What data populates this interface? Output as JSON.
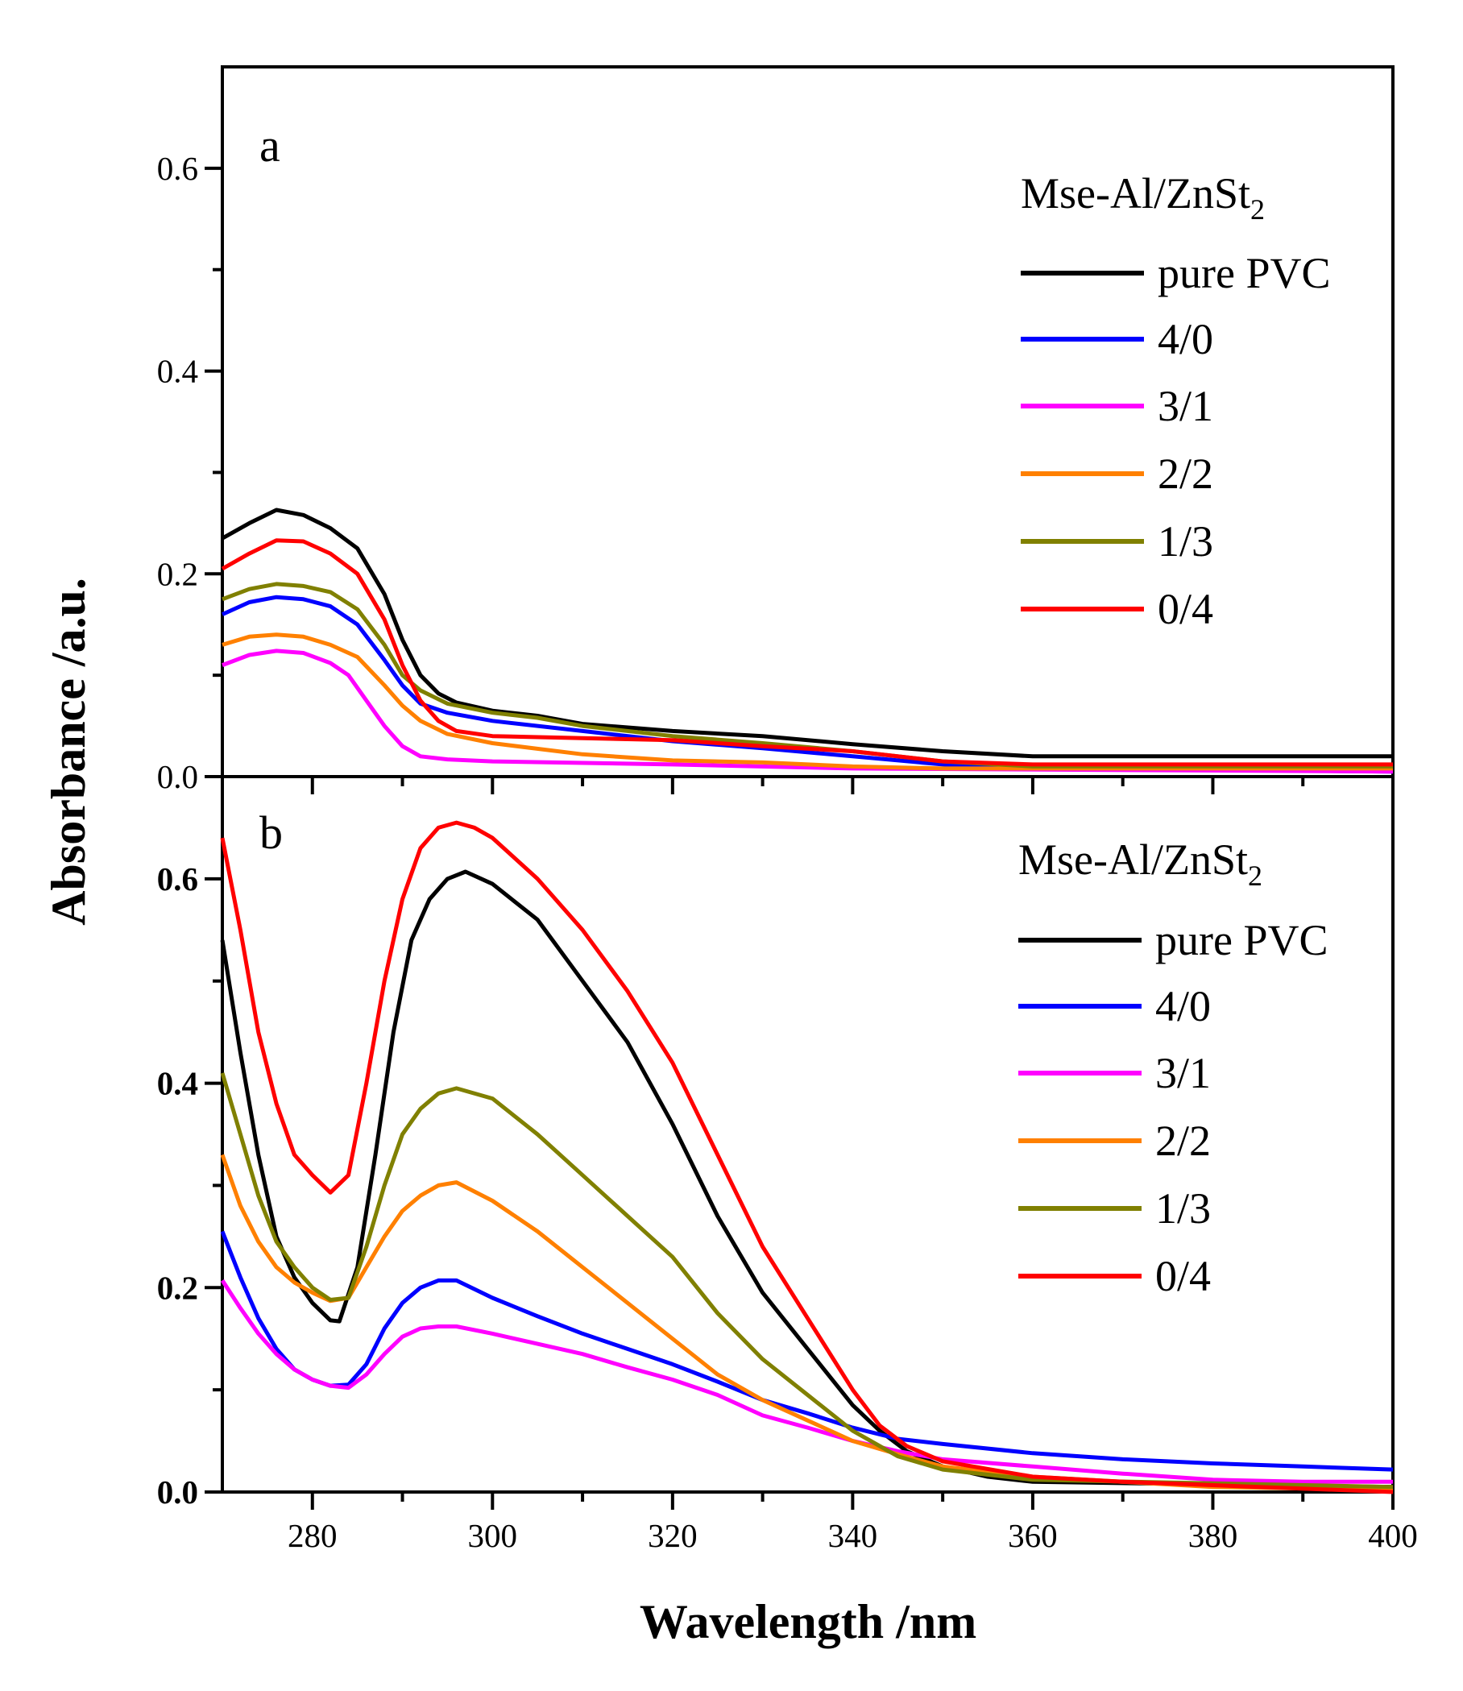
{
  "chart_data": [
    {
      "type": "line",
      "panel_label": "a",
      "xlabel": "Wavelength /nm",
      "ylabel": "Absorbance /a.u.",
      "xlim": [
        270,
        400
      ],
      "ylim": [
        0,
        0.7
      ],
      "xticks": [
        "280",
        "300",
        "320",
        "340",
        "360",
        "380",
        "400"
      ],
      "yticks": [
        "0.0",
        "0.2",
        "0.4",
        "0.6"
      ],
      "legend_title": "Mse-Al/ZnSt",
      "legend_title_sub": "2",
      "legend_position": "top-right",
      "series": [
        {
          "name": "pure PVC",
          "color": "#000000",
          "x": [
            270,
            273,
            276,
            279,
            282,
            285,
            288,
            290,
            292,
            294,
            296,
            300,
            305,
            310,
            320,
            330,
            340,
            350,
            360,
            400
          ],
          "y": [
            0.235,
            0.25,
            0.263,
            0.258,
            0.245,
            0.225,
            0.18,
            0.135,
            0.1,
            0.082,
            0.073,
            0.065,
            0.06,
            0.052,
            0.045,
            0.04,
            0.032,
            0.025,
            0.02,
            0.02
          ]
        },
        {
          "name": "4/0",
          "color": "#0000ff",
          "x": [
            270,
            273,
            276,
            279,
            282,
            285,
            288,
            290,
            292,
            295,
            300,
            310,
            320,
            330,
            340,
            350,
            360,
            400
          ],
          "y": [
            0.16,
            0.172,
            0.177,
            0.175,
            0.168,
            0.15,
            0.115,
            0.09,
            0.072,
            0.063,
            0.055,
            0.045,
            0.035,
            0.028,
            0.02,
            0.012,
            0.008,
            0.005
          ]
        },
        {
          "name": "3/1",
          "color": "#ff00ff",
          "x": [
            270,
            273,
            276,
            279,
            282,
            284,
            286,
            288,
            290,
            292,
            295,
            300,
            320,
            340,
            400
          ],
          "y": [
            0.11,
            0.12,
            0.124,
            0.122,
            0.112,
            0.1,
            0.075,
            0.05,
            0.03,
            0.02,
            0.017,
            0.015,
            0.012,
            0.008,
            0.005
          ]
        },
        {
          "name": "2/2",
          "color": "#ff8000",
          "x": [
            270,
            273,
            276,
            279,
            282,
            285,
            288,
            290,
            292,
            295,
            300,
            310,
            320,
            330,
            340,
            350,
            400
          ],
          "y": [
            0.13,
            0.138,
            0.14,
            0.138,
            0.13,
            0.118,
            0.09,
            0.07,
            0.055,
            0.042,
            0.033,
            0.022,
            0.016,
            0.014,
            0.01,
            0.008,
            0.008
          ]
        },
        {
          "name": "1/3",
          "color": "#808000",
          "x": [
            270,
            273,
            276,
            279,
            282,
            285,
            288,
            290,
            292,
            295,
            300,
            305,
            310,
            320,
            330,
            340,
            350,
            360,
            400
          ],
          "y": [
            0.175,
            0.185,
            0.19,
            0.188,
            0.182,
            0.165,
            0.13,
            0.1,
            0.085,
            0.072,
            0.063,
            0.058,
            0.05,
            0.04,
            0.033,
            0.025,
            0.015,
            0.01,
            0.01
          ]
        },
        {
          "name": "0/4",
          "color": "#ff0000",
          "x": [
            270,
            273,
            276,
            279,
            282,
            285,
            288,
            290,
            292,
            294,
            296,
            300,
            310,
            320,
            330,
            340,
            350,
            360,
            400
          ],
          "y": [
            0.205,
            0.22,
            0.233,
            0.232,
            0.22,
            0.2,
            0.155,
            0.11,
            0.075,
            0.055,
            0.045,
            0.04,
            0.038,
            0.036,
            0.03,
            0.025,
            0.015,
            0.012,
            0.012
          ]
        }
      ]
    },
    {
      "type": "line",
      "panel_label": "b",
      "xlabel": "Wavelength /nm",
      "ylabel": "Absorbance /a.u.",
      "xlim": [
        270,
        400
      ],
      "ylim": [
        0,
        0.7
      ],
      "xticks": [
        "280",
        "300",
        "320",
        "340",
        "360",
        "380",
        "400"
      ],
      "yticks": [
        "0.0",
        "0.2",
        "0.4",
        "0.6"
      ],
      "legend_title": "Mse-Al/ZnSt",
      "legend_title_sub": "2",
      "legend_position": "top-right",
      "series": [
        {
          "name": "pure PVC",
          "color": "#000000",
          "x": [
            270,
            272,
            274,
            276,
            278,
            280,
            282,
            283,
            285,
            287,
            289,
            291,
            293,
            295,
            297,
            300,
            305,
            310,
            315,
            320,
            325,
            330,
            335,
            340,
            343,
            346,
            350,
            355,
            360,
            400
          ],
          "y": [
            0.54,
            0.43,
            0.33,
            0.25,
            0.21,
            0.185,
            0.168,
            0.167,
            0.22,
            0.33,
            0.45,
            0.54,
            0.58,
            0.6,
            0.607,
            0.595,
            0.56,
            0.5,
            0.44,
            0.36,
            0.27,
            0.195,
            0.14,
            0.085,
            0.06,
            0.04,
            0.025,
            0.015,
            0.01,
            0.005
          ]
        },
        {
          "name": "4/0",
          "color": "#0000ff",
          "x": [
            270,
            272,
            274,
            276,
            278,
            280,
            282,
            284,
            286,
            288,
            290,
            292,
            294,
            296,
            300,
            305,
            310,
            315,
            320,
            325,
            330,
            335,
            340,
            345,
            350,
            360,
            370,
            380,
            390,
            400
          ],
          "y": [
            0.255,
            0.21,
            0.17,
            0.14,
            0.12,
            0.11,
            0.104,
            0.105,
            0.125,
            0.16,
            0.185,
            0.2,
            0.207,
            0.207,
            0.19,
            0.172,
            0.155,
            0.14,
            0.125,
            0.108,
            0.09,
            0.077,
            0.063,
            0.052,
            0.047,
            0.038,
            0.032,
            0.028,
            0.025,
            0.022
          ]
        },
        {
          "name": "3/1",
          "color": "#ff00ff",
          "x": [
            270,
            272,
            274,
            276,
            278,
            280,
            282,
            284,
            286,
            288,
            290,
            292,
            294,
            296,
            300,
            305,
            310,
            315,
            320,
            325,
            330,
            335,
            340,
            345,
            350,
            360,
            370,
            380,
            390,
            400
          ],
          "y": [
            0.207,
            0.18,
            0.155,
            0.135,
            0.12,
            0.11,
            0.104,
            0.102,
            0.115,
            0.135,
            0.152,
            0.16,
            0.162,
            0.162,
            0.155,
            0.145,
            0.135,
            0.122,
            0.11,
            0.095,
            0.075,
            0.063,
            0.05,
            0.04,
            0.032,
            0.025,
            0.018,
            0.012,
            0.01,
            0.01
          ]
        },
        {
          "name": "2/2",
          "color": "#ff8000",
          "x": [
            270,
            272,
            274,
            276,
            278,
            280,
            282,
            284,
            286,
            288,
            290,
            292,
            294,
            296,
            300,
            305,
            310,
            315,
            320,
            325,
            330,
            335,
            340,
            345,
            350,
            360,
            380,
            400
          ],
          "y": [
            0.33,
            0.28,
            0.245,
            0.22,
            0.205,
            0.195,
            0.187,
            0.19,
            0.22,
            0.25,
            0.275,
            0.29,
            0.3,
            0.303,
            0.285,
            0.255,
            0.22,
            0.185,
            0.15,
            0.115,
            0.09,
            0.07,
            0.05,
            0.037,
            0.025,
            0.015,
            0.005,
            0.002
          ]
        },
        {
          "name": "1/3",
          "color": "#808000",
          "x": [
            270,
            272,
            274,
            276,
            278,
            280,
            282,
            284,
            286,
            288,
            290,
            292,
            294,
            296,
            300,
            305,
            310,
            315,
            320,
            325,
            330,
            335,
            340,
            345,
            350,
            360,
            400
          ],
          "y": [
            0.41,
            0.35,
            0.29,
            0.245,
            0.22,
            0.2,
            0.188,
            0.19,
            0.24,
            0.3,
            0.35,
            0.375,
            0.39,
            0.395,
            0.385,
            0.35,
            0.31,
            0.27,
            0.23,
            0.175,
            0.13,
            0.095,
            0.06,
            0.035,
            0.022,
            0.012,
            0.005
          ]
        },
        {
          "name": "0/4",
          "color": "#ff0000",
          "x": [
            270,
            272,
            274,
            276,
            278,
            280,
            282,
            284,
            286,
            288,
            290,
            292,
            294,
            296,
            298,
            300,
            305,
            310,
            315,
            320,
            325,
            330,
            335,
            340,
            343,
            346,
            350,
            360,
            370,
            400
          ],
          "y": [
            0.64,
            0.55,
            0.45,
            0.38,
            0.33,
            0.31,
            0.293,
            0.31,
            0.4,
            0.5,
            0.58,
            0.63,
            0.65,
            0.655,
            0.65,
            0.64,
            0.6,
            0.55,
            0.49,
            0.42,
            0.33,
            0.24,
            0.17,
            0.1,
            0.065,
            0.045,
            0.03,
            0.015,
            0.01,
            0.0
          ]
        }
      ]
    }
  ]
}
